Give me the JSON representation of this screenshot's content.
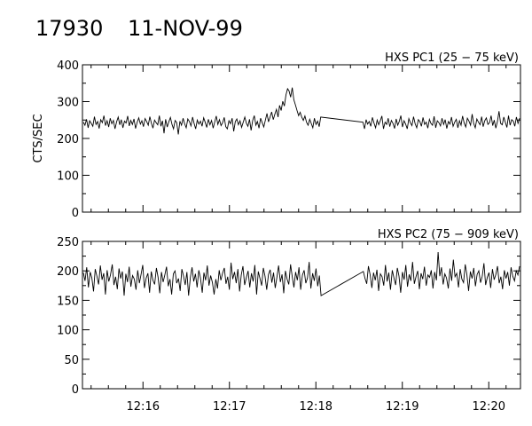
{
  "header": {
    "orbit": "17930",
    "date": "11-NOV-99"
  },
  "chart_data": [
    {
      "type": "line",
      "title": "HXS PC1 (25 − 75 keV)",
      "ylabel": "CTS/SEC",
      "xlabel": "",
      "x_range": [
        "12:15:18",
        "12:20:22"
      ],
      "ylim": [
        0,
        400
      ],
      "yticks": [
        0,
        100,
        200,
        300,
        400
      ],
      "xtick_labels": [
        "12:16",
        "12:17",
        "12:18",
        "12:19",
        "12:20"
      ],
      "series": [
        {
          "values": [
            244,
            236,
            252,
            229,
            248,
            241,
            233,
            259,
            238,
            246,
            227,
            251,
            243,
            262,
            235,
            248,
            231,
            255,
            240,
            249,
            226,
            245,
            258,
            237,
            251,
            229,
            247,
            242,
            261,
            234,
            249,
            238,
            253,
            227,
            244,
            256,
            239,
            248,
            232,
            254,
            246,
            236,
            259,
            241,
            228,
            250,
            243,
            237,
            262,
            233,
            248,
            214,
            252,
            231,
            245,
            257,
            238,
            226,
            249,
            243,
            211,
            247,
            236,
            255,
            240,
            229,
            253,
            246,
            234,
            258,
            241,
            226,
            250,
            239,
            247,
            233,
            256,
            244,
            230,
            252,
            237,
            249,
            228,
            245,
            261,
            238,
            251,
            235,
            243,
            257,
            232,
            226,
            248,
            240,
            255,
            219,
            246,
            253,
            237,
            248,
            230,
            244,
            258,
            241,
            233,
            252,
            222,
            249,
            262,
            236,
            246,
            228,
            255,
            243,
            231,
            250,
            268,
            245,
            258,
            272,
            251,
            266,
            279,
            258,
            290,
            276,
            301,
            288,
            318,
            335,
            329,
            312,
            338,
            305,
            291,
            276,
            262,
            271,
            258,
            249,
            261,
            244,
            236,
            252,
            241,
            229,
            255,
            238,
            247,
            232,
            258,
            244,
            226,
            251,
            239,
            246,
            233,
            257,
            242,
            229,
            250,
            237,
            248,
            261,
            226,
            244,
            238,
            255,
            232,
            249,
            241,
            227,
            253,
            236,
            246,
            262,
            231,
            248,
            239,
            226,
            254,
            243,
            235,
            259,
            240,
            229,
            251,
            246,
            233,
            257,
            238,
            244,
            228,
            252,
            241,
            236,
            260,
            229,
            248,
            243,
            234,
            255,
            238,
            251,
            227,
            246,
            239,
            258,
            233,
            244,
            252,
            229,
            248,
            236,
            261,
            242,
            231,
            255,
            247,
            236,
            266,
            241,
            229,
            253,
            244,
            237,
            259,
            232,
            248,
            256,
            238,
            243,
            262,
            235,
            250,
            228,
            246,
            274,
            241,
            237,
            258,
            244,
            230,
            262,
            236,
            251,
            247,
            233,
            258,
            241,
            255
          ]
        }
      ]
    },
    {
      "type": "line",
      "title": "HXS PC2 (75 − 909 keV)",
      "ylabel": "",
      "xlabel": "",
      "x_range": [
        "12:15:18",
        "12:20:22"
      ],
      "ylim": [
        0,
        250
      ],
      "yticks": [
        0,
        50,
        100,
        150,
        200,
        250
      ],
      "xtick_labels": [
        "12:16",
        "12:17",
        "12:18",
        "12:19",
        "12:20"
      ],
      "series": [
        {
          "values": [
            197,
            183,
            206,
            172,
            198,
            188,
            165,
            203,
            191,
            177,
            209,
            185,
            196,
            160,
            201,
            182,
            193,
            211,
            176,
            190,
            169,
            204,
            187,
            199,
            158,
            195,
            181,
            207,
            173,
            192,
            186,
            168,
            201,
            179,
            194,
            210,
            171,
            188,
            196,
            163,
            199,
            184,
            177,
            205,
            189,
            162,
            198,
            181,
            193,
            207,
            174,
            186,
            160,
            195,
            200,
            179,
            187,
            166,
            203,
            191,
            176,
            198,
            158,
            189,
            206,
            182,
            195,
            172,
            201,
            188,
            163,
            197,
            184,
            209,
            175,
            192,
            180,
            160,
            186,
            170,
            201,
            184,
            196,
            205,
            178,
            190,
            168,
            214,
            186,
            198,
            179,
            203,
            165,
            193,
            208,
            176,
            189,
            200,
            172,
            196,
            182,
            210,
            160,
            199,
            187,
            175,
            205,
            191,
            168,
            194,
            202,
            180,
            197,
            171,
            189,
            209,
            181,
            194,
            162,
            200,
            186,
            177,
            211,
            190,
            172,
            198,
            184,
            206,
            168,
            193,
            201,
            179,
            188,
            215,
            170,
            196,
            183,
            204,
            174,
            192,
            158,
            199,
            187,
            178,
            208,
            193,
            171,
            197,
            184,
            202,
            166,
            195,
            190,
            175,
            210,
            182,
            197,
            168,
            201,
            188,
            176,
            205,
            191,
            163,
            198,
            185,
            210,
            173,
            194,
            183,
            215,
            178,
            190,
            200,
            169,
            196,
            186,
            207,
            175,
            193,
            189,
            201,
            170,
            198,
            184,
            232,
            191,
            206,
            177,
            195,
            188,
            170,
            204,
            183,
            219,
            190,
            196,
            172,
            203,
            186,
            180,
            211,
            193,
            166,
            199,
            187,
            205,
            174,
            194,
            200,
            180,
            191,
            213,
            176,
            189,
            197,
            171,
            203,
            185,
            194,
            208,
            179,
            190,
            169,
            201,
            187,
            198,
            175,
            206,
            191,
            183,
            200,
            193,
            208
          ]
        }
      ]
    }
  ]
}
